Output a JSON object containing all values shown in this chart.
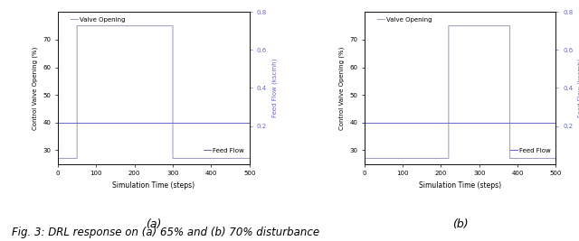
{
  "fig_width": 6.4,
  "fig_height": 2.67,
  "dpi": 100,
  "subplot_a": {
    "valve_start": 0,
    "valve_initial": 27,
    "valve_step1_x": 50,
    "valve_high": 75,
    "valve_step2_x": 300,
    "valve_end_x": 500,
    "feed_flow_value": 40,
    "valve_color": "#9999bb",
    "feed_color": "#6666cc",
    "xlim": [
      0,
      500
    ],
    "ylim_left": [
      25,
      80
    ],
    "ylim_right": [
      0.0,
      0.8
    ],
    "yticks_left": [
      30,
      40,
      50,
      60,
      70
    ],
    "yticks_right": [
      0.2,
      0.4,
      0.6,
      0.8
    ],
    "xlabel": "Simulation Time (steps)",
    "ylabel_left": "Control Valve Opening (%)",
    "ylabel_right": "Feed Flow (kscmh)",
    "xticks": [
      0,
      100,
      200,
      300,
      400,
      500
    ],
    "legend_valve": "Valve Opening",
    "legend_feed": "Feed Flow",
    "label": "(a)"
  },
  "subplot_b": {
    "valve_start": 0,
    "valve_initial": 27,
    "valve_step1_x": 220,
    "valve_high": 75,
    "valve_step2_x": 380,
    "valve_end_x": 500,
    "feed_flow_value": 40,
    "valve_color": "#9999bb",
    "feed_color": "#6666cc",
    "xlim": [
      0,
      500
    ],
    "ylim_left": [
      25,
      80
    ],
    "ylim_right": [
      0.0,
      0.8
    ],
    "yticks_left": [
      30,
      40,
      50,
      60,
      70
    ],
    "yticks_right": [
      0.2,
      0.4,
      0.6,
      0.8
    ],
    "xlabel": "Simulation Time (steps)",
    "ylabel_left": "Control Valve Opening (%)",
    "ylabel_right": "Feed Flow (kscmh)",
    "xticks": [
      0,
      100,
      200,
      300,
      400,
      500
    ],
    "legend_valve": "Valve Opening",
    "legend_feed": "Feed Flow",
    "label": "(b)"
  },
  "fig_caption": "Fig. 3: DRL response on (a) 65% and (b) 70% disturbance",
  "caption_fontsize": 8.5
}
